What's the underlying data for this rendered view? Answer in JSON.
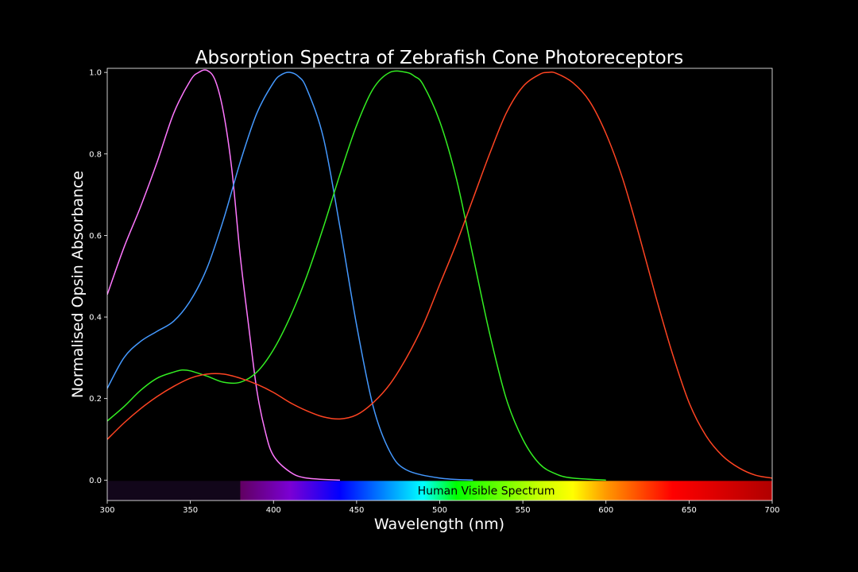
{
  "chart_data": {
    "type": "line",
    "title": "Absorption Spectra of Zebrafish Cone Photoreceptors",
    "xlabel": "Wavelength (nm)",
    "ylabel": "Normalised Opsin Absorbance",
    "xlim": [
      300,
      700
    ],
    "ylim": [
      -0.05,
      1.01
    ],
    "x_ticks": [
      "300",
      "350",
      "400",
      "450",
      "500",
      "550",
      "600",
      "650",
      "700"
    ],
    "y_ticks": [
      "0.0",
      "0.2",
      "0.4",
      "0.6",
      "0.8",
      "1.0"
    ],
    "grid": false,
    "spectrum_band": {
      "label": "Human Visible Spectrum",
      "x_range": [
        380,
        700
      ],
      "uv_region_x_range": [
        300,
        380
      ],
      "colors": {
        "uv": "#12061a",
        "380": "#610061",
        "410": "#7b00d4",
        "440": "#0000ff",
        "460": "#0066ff",
        "490": "#00ffff",
        "510": "#00ff00",
        "560": "#c8ff00",
        "580": "#ffff00",
        "600": "#ff9900",
        "640": "#ff0000",
        "700": "#b00000"
      }
    },
    "series": [
      {
        "color": "#ff77ff",
        "x": [
          300,
          310,
          320,
          330,
          340,
          350,
          355,
          360,
          365,
          370,
          375,
          380,
          385,
          390,
          395,
          400,
          410,
          420,
          440
        ],
        "y": [
          0.455,
          0.57,
          0.67,
          0.78,
          0.9,
          0.98,
          1.0,
          1.005,
          0.98,
          0.9,
          0.76,
          0.55,
          0.38,
          0.22,
          0.12,
          0.06,
          0.02,
          0.005,
          0.0
        ]
      },
      {
        "color": "#4499ff",
        "x": [
          300,
          310,
          320,
          330,
          340,
          350,
          360,
          370,
          380,
          390,
          400,
          405,
          410,
          415,
          420,
          430,
          440,
          450,
          460,
          470,
          480,
          500,
          520
        ],
        "y": [
          0.225,
          0.3,
          0.34,
          0.365,
          0.39,
          0.44,
          0.52,
          0.64,
          0.78,
          0.9,
          0.975,
          0.995,
          1.0,
          0.99,
          0.96,
          0.84,
          0.62,
          0.38,
          0.18,
          0.07,
          0.025,
          0.005,
          0.0
        ]
      },
      {
        "color": "#33ee22",
        "x": [
          300,
          310,
          320,
          330,
          340,
          345,
          350,
          360,
          370,
          380,
          390,
          400,
          410,
          420,
          430,
          440,
          450,
          460,
          470,
          480,
          485,
          490,
          500,
          510,
          520,
          530,
          540,
          550,
          560,
          570,
          580,
          600
        ],
        "y": [
          0.145,
          0.18,
          0.22,
          0.25,
          0.265,
          0.27,
          0.268,
          0.255,
          0.24,
          0.24,
          0.265,
          0.32,
          0.4,
          0.5,
          0.62,
          0.75,
          0.87,
          0.96,
          1.0,
          1.0,
          0.99,
          0.97,
          0.88,
          0.74,
          0.55,
          0.36,
          0.2,
          0.1,
          0.04,
          0.015,
          0.005,
          0.0
        ]
      },
      {
        "color": "#ff4422",
        "x": [
          300,
          310,
          320,
          330,
          340,
          350,
          360,
          370,
          380,
          390,
          400,
          410,
          420,
          430,
          440,
          450,
          460,
          470,
          480,
          490,
          500,
          510,
          520,
          530,
          540,
          550,
          560,
          565,
          570,
          580,
          590,
          600,
          610,
          620,
          630,
          640,
          650,
          660,
          670,
          680,
          690,
          700
        ],
        "y": [
          0.1,
          0.14,
          0.175,
          0.205,
          0.23,
          0.25,
          0.26,
          0.26,
          0.25,
          0.235,
          0.215,
          0.19,
          0.17,
          0.155,
          0.15,
          0.16,
          0.19,
          0.235,
          0.3,
          0.38,
          0.48,
          0.58,
          0.69,
          0.8,
          0.9,
          0.965,
          0.995,
          1.0,
          0.998,
          0.975,
          0.93,
          0.85,
          0.74,
          0.6,
          0.45,
          0.31,
          0.19,
          0.11,
          0.06,
          0.03,
          0.012,
          0.005
        ]
      }
    ]
  }
}
